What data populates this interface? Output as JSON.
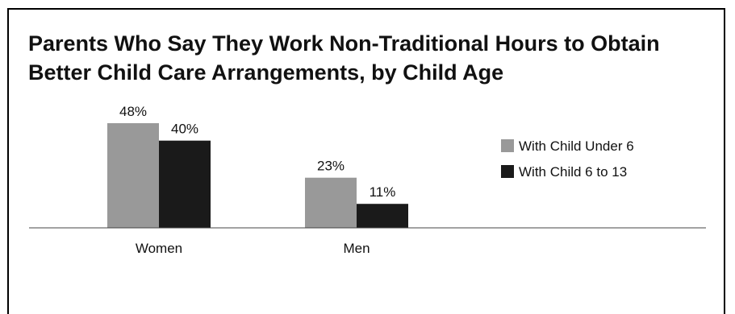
{
  "chart_data": {
    "type": "bar",
    "title": "Parents Who Say They Work Non-Traditional Hours to Obtain Better Child Care Arrangements, by Child Age",
    "categories": [
      "Women",
      "Men"
    ],
    "series": [
      {
        "name": "With Child Under 6",
        "values": [
          48,
          23
        ],
        "color": "#999999"
      },
      {
        "name": "With Child 6 to 13",
        "values": [
          40,
          11
        ],
        "color": "#1a1a1a"
      }
    ],
    "value_format": "percent",
    "ylim": [
      0,
      48
    ],
    "grid": false,
    "legend": "right",
    "xlabel": "",
    "ylabel": ""
  }
}
